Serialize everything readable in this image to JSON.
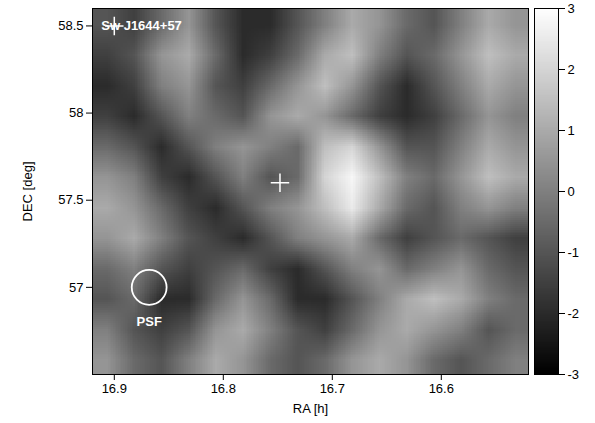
{
  "chart_data": {
    "type": "heatmap",
    "x_label": "RA [h]",
    "y_label": "DEC [deg]",
    "xlim": [
      16.92,
      16.52
    ],
    "xticks": [
      16.9,
      16.8,
      16.7,
      16.6
    ],
    "ylim": [
      56.5,
      58.6
    ],
    "yticks": [
      57,
      57.5,
      58,
      58.5
    ],
    "cells": [
      [
        -1,
        -1.5,
        -0.5,
        0.5,
        -1,
        -2,
        -2,
        -1,
        0,
        1,
        0.5,
        -0.5,
        -1,
        0,
        1,
        0.5
      ],
      [
        -1.5,
        -1,
        0.5,
        1,
        -0.5,
        -2,
        -1.5,
        -0.5,
        1,
        1.5,
        0,
        -1,
        -0.5,
        0.5,
        1.5,
        1
      ],
      [
        -2,
        -1.5,
        0,
        0.5,
        -1,
        -1.5,
        -0.5,
        0.5,
        1.5,
        0.5,
        -1,
        -2,
        -1,
        0,
        1,
        0.5
      ],
      [
        -1.5,
        -2,
        -1,
        0,
        -0.5,
        -1,
        0.5,
        1,
        0.5,
        -0.5,
        -1.5,
        -2,
        -1.5,
        -0.5,
        0.5,
        0
      ],
      [
        -0.5,
        -1,
        -2,
        -1,
        0,
        0.5,
        0,
        -0.5,
        1.5,
        2,
        0.5,
        -1,
        -1,
        0,
        1,
        0.5
      ],
      [
        0.5,
        0,
        -1.5,
        -2,
        -1,
        0,
        -1,
        -0.5,
        2,
        2.8,
        1.5,
        0,
        -0.5,
        0.5,
        1.5,
        1
      ],
      [
        1,
        0.5,
        -0.5,
        -1.5,
        -2,
        -1,
        0,
        0.5,
        1.5,
        2.5,
        1,
        -0.5,
        -1,
        0,
        0.5,
        0
      ],
      [
        0.5,
        1,
        0,
        -1,
        -1.5,
        -2,
        -1,
        0,
        0.5,
        1,
        -0.5,
        -1.5,
        -1,
        -0.5,
        -1,
        -1.5
      ],
      [
        -0.5,
        0,
        -1,
        -1.5,
        -1,
        -0.5,
        -1.5,
        -2,
        -1,
        0,
        0.5,
        -0.5,
        0,
        0.5,
        -0.5,
        -1
      ],
      [
        -1,
        -0.5,
        -2,
        -2,
        -0.5,
        0.5,
        -0.5,
        -2,
        -2,
        -1,
        0,
        1,
        1.5,
        1,
        0,
        -0.5
      ],
      [
        0,
        -1,
        -1.5,
        -1,
        0.5,
        1,
        0,
        -1,
        -1.5,
        -0.5,
        0.5,
        1,
        0.5,
        0,
        -1,
        -0.5
      ],
      [
        0.5,
        -0.5,
        -1,
        0,
        1,
        0.5,
        -0.5,
        -1,
        -0.5,
        0.5,
        1,
        0.5,
        -0.5,
        -1,
        -0.5,
        0
      ]
    ],
    "colorbar": {
      "lim": [
        -3,
        3
      ],
      "ticks": [
        -3,
        -2,
        -1,
        0,
        1,
        2,
        3
      ]
    },
    "markers": [
      {
        "x": 16.9,
        "y": 58.5,
        "marker": "plus"
      },
      {
        "x": 16.748,
        "y": 57.6,
        "marker": "plus"
      }
    ],
    "annotations": [
      {
        "text": "Sw J1644+57",
        "x": 16.875,
        "y": 58.5
      },
      {
        "text": "PSF",
        "x": 16.868,
        "y": 56.8
      }
    ],
    "psf": {
      "x": 16.868,
      "y": 57.0,
      "radius": 0.1
    }
  }
}
